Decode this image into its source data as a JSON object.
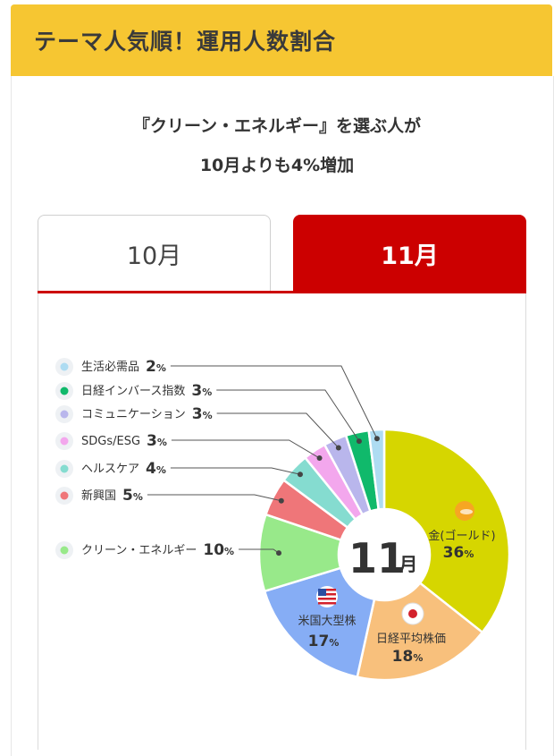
{
  "header": {
    "title": "テーマ人気順！運用人数割合"
  },
  "headline": {
    "line1": "『クリーン・エネルギー』を選ぶ人が",
    "line2": "10月よりも4%増加"
  },
  "tabs": [
    {
      "label": "10月",
      "active": false
    },
    {
      "label": "11月",
      "active": true
    }
  ],
  "center_label": {
    "number": "11",
    "unit": "月"
  },
  "colors": {
    "header_bg": "#f6c632",
    "tab_active_bg": "#cc0000"
  },
  "chart_data": {
    "type": "pie",
    "style": "donut",
    "unit": "%",
    "slices": [
      {
        "label": "金(ゴールド)",
        "value": 36,
        "color": "#d6d600",
        "icon": "gold-coins-icon"
      },
      {
        "label": "日経平均株価",
        "value": 18,
        "color": "#f8c07c",
        "icon": "japan-flag-icon"
      },
      {
        "label": "米国大型株",
        "value": 17,
        "color": "#86adf5",
        "icon": "us-flag-icon"
      },
      {
        "label": "クリーン・エネルギー",
        "value": 10,
        "color": "#98e98a",
        "icon": "wind-turbine-icon"
      },
      {
        "label": "新興国",
        "value": 5,
        "color": "#ef7679",
        "icon": "buildings-icon"
      },
      {
        "label": "ヘルスケア",
        "value": 4,
        "color": "#85dcd0",
        "icon": "stethoscope-icon"
      },
      {
        "label": "SDGs/ESG",
        "value": 3,
        "color": "#f3a7ed",
        "icon": "sprout-icon"
      },
      {
        "label": "コミュニケーション",
        "value": 3,
        "color": "#b9b6ec",
        "icon": "chat-bubbles-icon"
      },
      {
        "label": "日経インバース指数",
        "value": 3,
        "color": "#10b96b",
        "icon": "inverse-chart-icon"
      },
      {
        "label": "生活必需品",
        "value": 2,
        "color": "#aedcf2",
        "icon": "toilet-paper-icon"
      }
    ]
  }
}
